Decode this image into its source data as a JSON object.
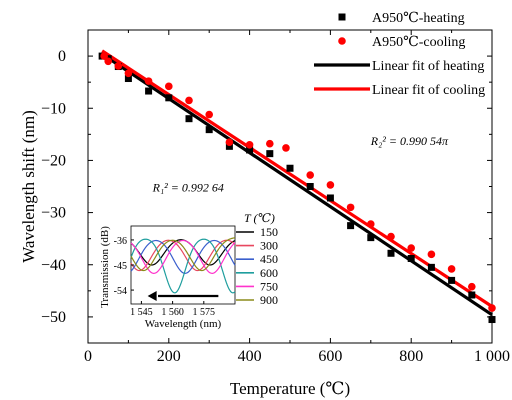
{
  "chart_data": [
    {
      "type": "scatter",
      "xlabel": "Temperature (℃)",
      "ylabel": "Wavelength shift (nm)",
      "xlim": [
        0,
        1000
      ],
      "ylim": [
        -55,
        5
      ],
      "xticks": [
        0,
        200,
        400,
        600,
        800,
        1000
      ],
      "xtick_labels": [
        "0",
        "200",
        "400",
        "600",
        "800",
        "1 000"
      ],
      "yticks": [
        0,
        -10,
        -20,
        -30,
        -40,
        -50
      ],
      "ytick_labels": [
        "0",
        "−10",
        "−20",
        "−30",
        "−40",
        "−50"
      ],
      "grid": false,
      "legend_position": "top-right",
      "series": [
        {
          "name": "A950℃-heating",
          "marker": "square",
          "color": "#000000",
          "points": [
            [
              35,
              0
            ],
            [
              50,
              -0.5
            ],
            [
              75,
              -2.0
            ],
            [
              100,
              -4.3
            ],
            [
              150,
              -6.7
            ],
            [
              200,
              -8.0
            ],
            [
              250,
              -12.0
            ],
            [
              300,
              -14.1
            ],
            [
              350,
              -17.3
            ],
            [
              400,
              -18.0
            ],
            [
              450,
              -18.7
            ],
            [
              500,
              -21.5
            ],
            [
              550,
              -25.0
            ],
            [
              600,
              -27.2
            ],
            [
              650,
              -32.5
            ],
            [
              700,
              -34.8
            ],
            [
              750,
              -37.8
            ],
            [
              800,
              -38.8
            ],
            [
              850,
              -40.5
            ],
            [
              900,
              -43.0
            ],
            [
              950,
              -45.8
            ],
            [
              1000,
              -50.5
            ]
          ]
        },
        {
          "name": "A950℃-cooling",
          "marker": "circle",
          "color": "#ff0000",
          "points": [
            [
              40,
              0
            ],
            [
              50,
              -1.0
            ],
            [
              75,
              -1.9
            ],
            [
              100,
              -3.3
            ],
            [
              150,
              -4.8
            ],
            [
              200,
              -5.8
            ],
            [
              250,
              -8.5
            ],
            [
              300,
              -11.2
            ],
            [
              350,
              -16.5
            ],
            [
              400,
              -17.0
            ],
            [
              450,
              -16.8
            ],
            [
              490,
              -17.6
            ],
            [
              550,
              -22.8
            ],
            [
              600,
              -24.7
            ],
            [
              650,
              -29.0
            ],
            [
              700,
              -32.2
            ],
            [
              750,
              -34.6
            ],
            [
              800,
              -36.8
            ],
            [
              850,
              -38.0
            ],
            [
              900,
              -40.8
            ],
            [
              950,
              -44.2
            ],
            [
              1000,
              -48.3
            ]
          ]
        },
        {
          "name": "Linear fit of heating",
          "type": "line",
          "color": "#000000",
          "x": [
            35,
            1000
          ],
          "y": [
            0.4,
            -49.6
          ]
        },
        {
          "name": "Linear fit of cooling",
          "type": "line",
          "color": "#ff0000",
          "x": [
            35,
            1000
          ],
          "y": [
            1.0,
            -48.0
          ]
        }
      ],
      "annotations": [
        {
          "text": "R₁² = 0.992 64",
          "x": 160,
          "y": -26
        },
        {
          "text": "R₂² = 0.990 54π",
          "x": 700,
          "y": -17
        }
      ]
    },
    {
      "type": "line",
      "title": "",
      "xlabel": "Wavelength (nm)",
      "ylabel": "Transmission (dB)",
      "xlim": [
        1540,
        1590
      ],
      "ylim": [
        -59,
        -31
      ],
      "xticks": [
        1545,
        1560,
        1575
      ],
      "xtick_labels": [
        "1 545",
        "1 560",
        "1 575"
      ],
      "yticks": [
        -36,
        -45,
        -54
      ],
      "ytick_labels": [
        "-36",
        "-45",
        "-54"
      ],
      "legend_title": "T (℃)",
      "legend_position": "right",
      "arrow_direction": "left",
      "series": [
        {
          "name": "150",
          "color": "#000000",
          "dip_center": 1578,
          "dip_depth": -45,
          "dip_width": 8
        },
        {
          "name": "300",
          "color": "#e8475f",
          "dip_center": 1572,
          "dip_depth": -47,
          "dip_width": 8
        },
        {
          "name": "450",
          "color": "#3a5fcd",
          "dip_center": 1566,
          "dip_depth": -48,
          "dip_width": 8
        },
        {
          "name": "600",
          "color": "#1f9e9e",
          "dip_center": 1561,
          "dip_depth": -55,
          "dip_width": 7
        },
        {
          "name": "750",
          "color": "#ff33cc",
          "dip_center": 1551,
          "dip_depth": -48,
          "dip_width": 8
        },
        {
          "name": "900",
          "color": "#8b8b1a",
          "dip_center": 1546,
          "dip_depth": -47,
          "dip_width": 8
        }
      ]
    }
  ]
}
